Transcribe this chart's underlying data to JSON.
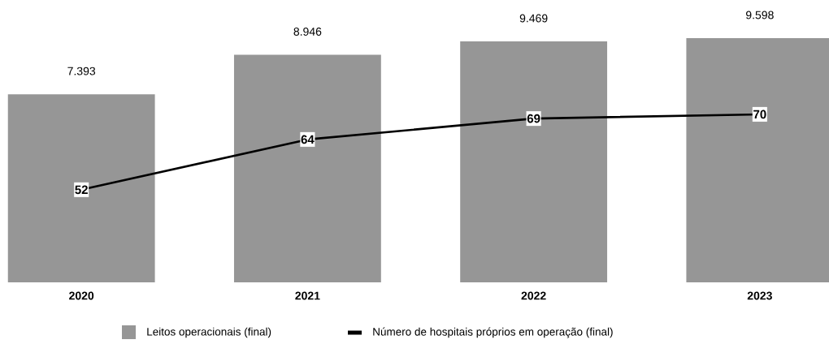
{
  "chart_data": {
    "type": "bar",
    "categories": [
      "2020",
      "2021",
      "2022",
      "2023"
    ],
    "series": [
      {
        "name": "Leitos operacionais (final)",
        "color": "#969696",
        "values": [
          7393,
          8946,
          9469,
          9598
        ],
        "value_labels": [
          "7.393",
          "8.946",
          "9.469",
          "9.598"
        ]
      },
      {
        "name": "Número de hospitais próprios em operação (final)",
        "type": "line",
        "axis": "y2",
        "color": "#000000",
        "marker": "square",
        "line_style": "solid",
        "values": [
          52,
          64,
          69,
          70
        ],
        "value_labels": [
          "52",
          "64",
          "69",
          "70"
        ]
      }
    ],
    "tick_labels": "x",
    "grid": false,
    "legend": "bottom"
  }
}
